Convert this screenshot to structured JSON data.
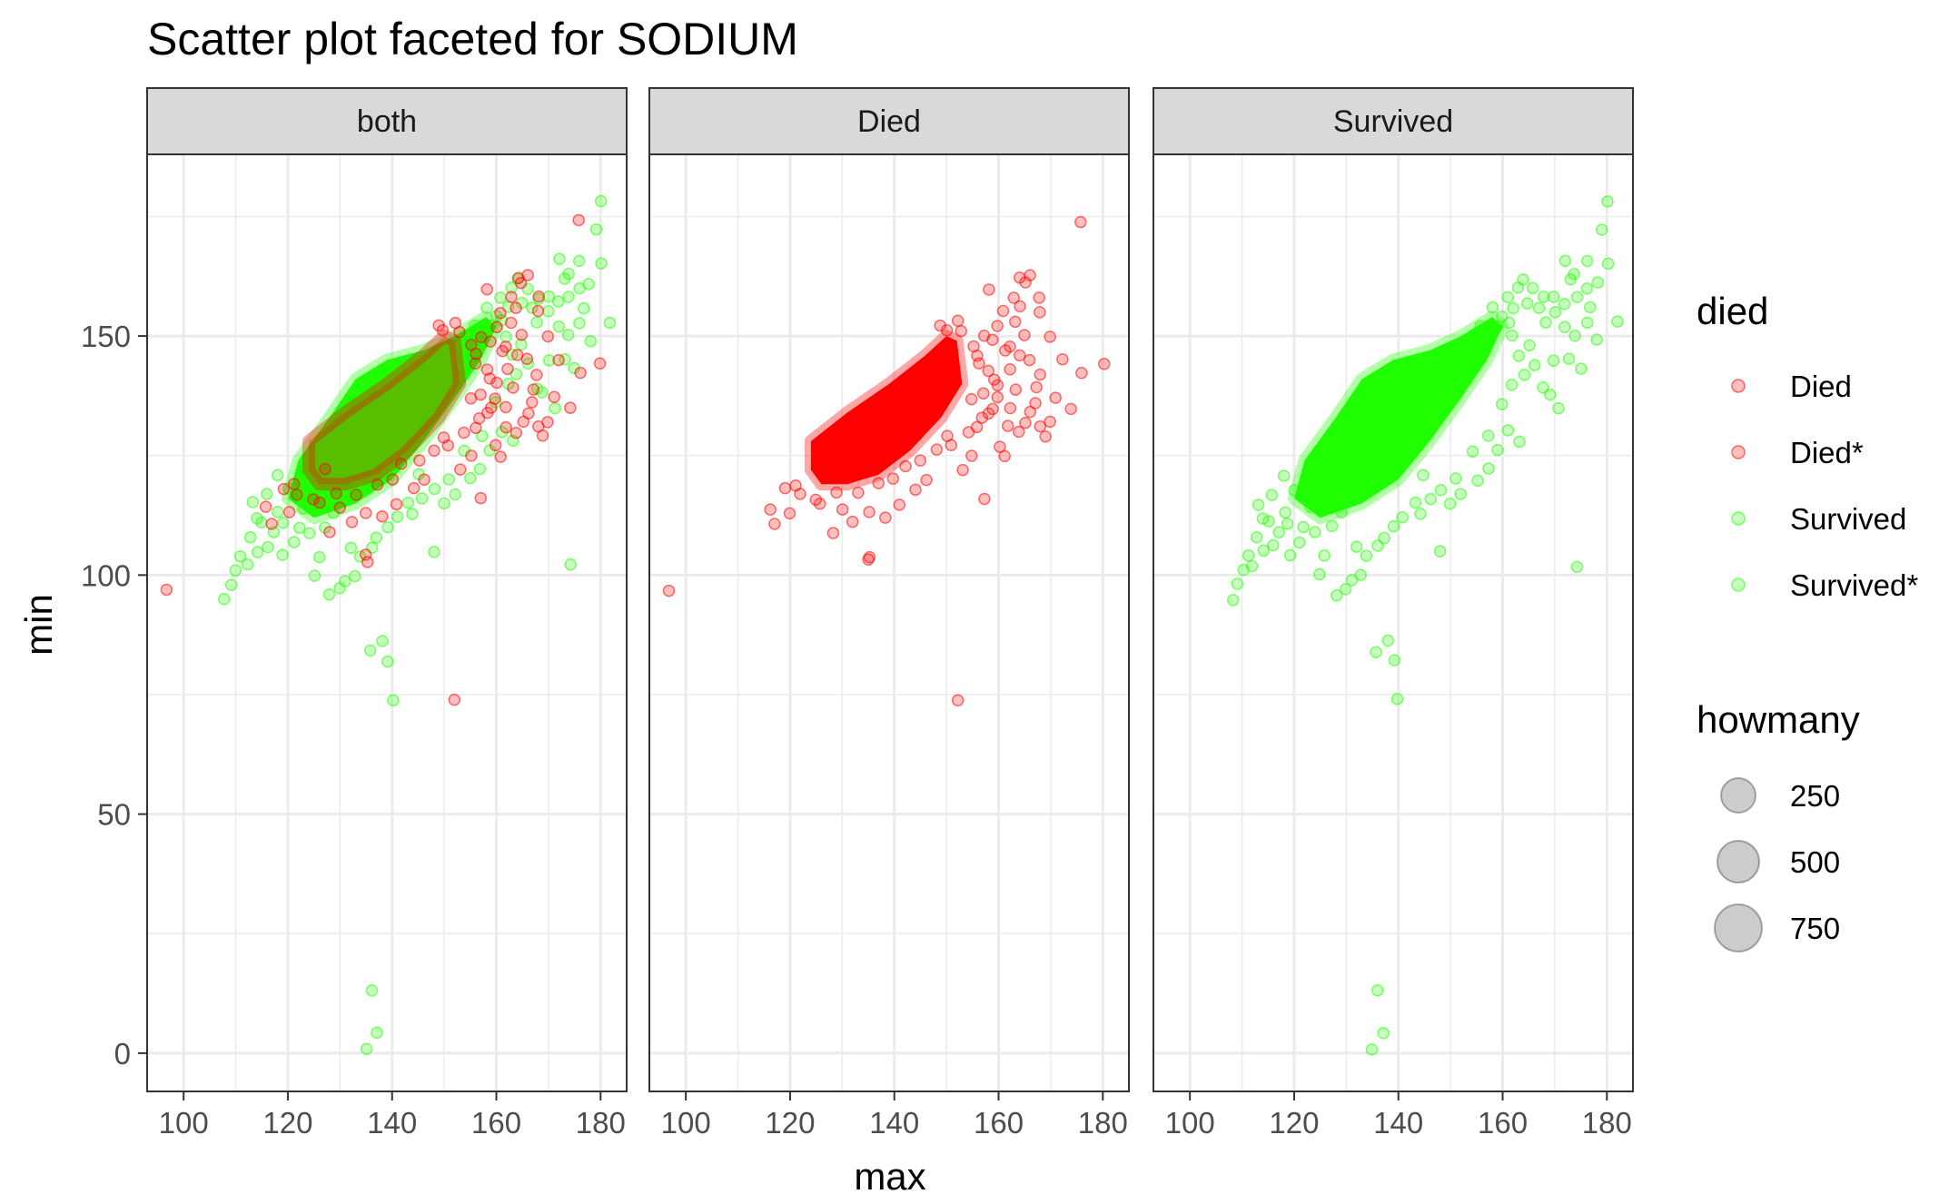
{
  "chart_data": {
    "type": "scatter",
    "title": "Scatter plot faceted for SODIUM",
    "xlabel": "max",
    "ylabel": "min",
    "xlim": [
      93,
      185
    ],
    "ylim": [
      -8,
      188
    ],
    "x_ticks": [
      "100",
      "120",
      "140",
      "160",
      "180"
    ],
    "y_ticks": [
      "0",
      "50",
      "100",
      "150"
    ],
    "grid": true,
    "legend_position": "right",
    "facets": [
      "both",
      "Died",
      "Survived"
    ],
    "color_legend": {
      "title": "died",
      "entries": [
        {
          "label": "Died",
          "color": "#ff0000"
        },
        {
          "label": "Died*",
          "color": "#ff0000"
        },
        {
          "label": "Survived",
          "color": "#1fff00"
        },
        {
          "label": "Survived*",
          "color": "#1fff00"
        }
      ]
    },
    "size_legend": {
      "title": "howmany",
      "entries": [
        "250",
        "500",
        "750"
      ]
    },
    "series": [
      {
        "name": "Died",
        "color": "#ff0000",
        "dense_region": [
          [
            124,
            122
          ],
          [
            124,
            128
          ],
          [
            131,
            134
          ],
          [
            139,
            140
          ],
          [
            146,
            146
          ],
          [
            150,
            150
          ],
          [
            152,
            149
          ],
          [
            153,
            140
          ],
          [
            149,
            133
          ],
          [
            143,
            126
          ],
          [
            137,
            121
          ],
          [
            131,
            119
          ],
          [
            126,
            119
          ]
        ],
        "points": [
          [
            97,
            97
          ],
          [
            135,
            104
          ],
          [
            135,
            103
          ],
          [
            152,
            74
          ],
          [
            176,
            174
          ],
          [
            180,
            144
          ],
          [
            176,
            142
          ],
          [
            174,
            135
          ],
          [
            171,
            137
          ],
          [
            169,
            129
          ],
          [
            168,
            131
          ],
          [
            166,
            163
          ],
          [
            164,
            162
          ],
          [
            165,
            161
          ],
          [
            163,
            158
          ],
          [
            168,
            158
          ],
          [
            168,
            155
          ],
          [
            163,
            153
          ],
          [
            165,
            150
          ],
          [
            161,
            147
          ],
          [
            166,
            145
          ],
          [
            162,
            143
          ],
          [
            167,
            139
          ],
          [
            163,
            139
          ],
          [
            166,
            134
          ],
          [
            164,
            130
          ],
          [
            162,
            131
          ],
          [
            159,
            135
          ],
          [
            160,
            137
          ],
          [
            160,
            140
          ],
          [
            161,
            125
          ],
          [
            160,
            127
          ],
          [
            157,
            116
          ],
          [
            156,
            131
          ],
          [
            155,
            125
          ],
          [
            153,
            122
          ],
          [
            150,
            129
          ],
          [
            148,
            126
          ],
          [
            146,
            120
          ],
          [
            142,
            123
          ],
          [
            144,
            118
          ],
          [
            141,
            115
          ],
          [
            138,
            112
          ],
          [
            135,
            113
          ],
          [
            132,
            111
          ],
          [
            130,
            114
          ],
          [
            128,
            109
          ],
          [
            126,
            115
          ],
          [
            125,
            116
          ],
          [
            122,
            117
          ],
          [
            119,
            118
          ],
          [
            117,
            111
          ],
          [
            116,
            114
          ],
          [
            121,
            119
          ],
          [
            120,
            113
          ],
          [
            127,
            122
          ],
          [
            129,
            117
          ],
          [
            133,
            117
          ],
          [
            137,
            119
          ],
          [
            140,
            120
          ],
          [
            145,
            124
          ],
          [
            151,
            127
          ],
          [
            154,
            130
          ],
          [
            158,
            134
          ],
          [
            157,
            138
          ],
          [
            158,
            143
          ],
          [
            156,
            146
          ],
          [
            155,
            148
          ],
          [
            153,
            151
          ],
          [
            152,
            153
          ],
          [
            150,
            151
          ],
          [
            149,
            152
          ],
          [
            160,
            152
          ],
          [
            162,
            148
          ],
          [
            164,
            146
          ],
          [
            157,
            150
          ],
          [
            159,
            149
          ],
          [
            161,
            155
          ],
          [
            164,
            156
          ],
          [
            158,
            160
          ],
          [
            156,
            144
          ],
          [
            159,
            141
          ],
          [
            155,
            137
          ],
          [
            157,
            133
          ],
          [
            162,
            135
          ],
          [
            165,
            132
          ],
          [
            170,
            132
          ],
          [
            167,
            136
          ],
          [
            168,
            142
          ],
          [
            170,
            150
          ],
          [
            172,
            145
          ]
        ]
      },
      {
        "name": "Survived",
        "color": "#1fff00",
        "dense_region": [
          [
            120,
            116
          ],
          [
            122,
            124
          ],
          [
            128,
            133
          ],
          [
            133,
            141
          ],
          [
            139,
            145
          ],
          [
            146,
            147
          ],
          [
            152,
            150
          ],
          [
            158,
            154
          ],
          [
            160,
            152
          ],
          [
            157,
            145
          ],
          [
            152,
            137
          ],
          [
            146,
            128
          ],
          [
            140,
            120
          ],
          [
            133,
            115
          ],
          [
            125,
            112
          ]
        ],
        "points": [
          [
            135,
            1
          ],
          [
            137,
            4
          ],
          [
            136,
            13
          ],
          [
            136,
            84
          ],
          [
            138,
            86
          ],
          [
            139,
            82
          ],
          [
            140,
            74
          ],
          [
            148,
            105
          ],
          [
            157,
            122
          ],
          [
            174,
            102
          ],
          [
            108,
            95
          ],
          [
            109,
            98
          ],
          [
            111,
            104
          ],
          [
            112,
            102
          ],
          [
            110,
            101
          ],
          [
            114,
            105
          ],
          [
            113,
            108
          ],
          [
            115,
            111
          ],
          [
            117,
            109
          ],
          [
            116,
            106
          ],
          [
            119,
            104
          ],
          [
            121,
            107
          ],
          [
            118,
            113
          ],
          [
            124,
            109
          ],
          [
            126,
            104
          ],
          [
            127,
            110
          ],
          [
            125,
            100
          ],
          [
            128,
            96
          ],
          [
            130,
            97
          ],
          [
            131,
            99
          ],
          [
            133,
            100
          ],
          [
            132,
            106
          ],
          [
            134,
            104
          ],
          [
            137,
            108
          ],
          [
            139,
            110
          ],
          [
            141,
            112
          ],
          [
            143,
            115
          ],
          [
            146,
            116
          ],
          [
            150,
            115
          ],
          [
            152,
            117
          ],
          [
            155,
            120
          ],
          [
            154,
            126
          ],
          [
            157,
            129
          ],
          [
            159,
            126
          ],
          [
            161,
            130
          ],
          [
            163,
            128
          ],
          [
            160,
            136
          ],
          [
            162,
            140
          ],
          [
            164,
            142
          ],
          [
            166,
            144
          ],
          [
            163,
            146
          ],
          [
            165,
            148
          ],
          [
            168,
            153
          ],
          [
            170,
            155
          ],
          [
            172,
            157
          ],
          [
            174,
            158
          ],
          [
            176,
            160
          ],
          [
            178,
            161
          ],
          [
            180,
            165
          ],
          [
            179,
            172
          ],
          [
            180,
            178
          ],
          [
            176,
            166
          ],
          [
            174,
            163
          ],
          [
            172,
            166
          ],
          [
            173,
            162
          ],
          [
            170,
            158
          ],
          [
            168,
            158
          ],
          [
            166,
            160
          ],
          [
            164,
            162
          ],
          [
            163,
            160
          ],
          [
            165,
            157
          ],
          [
            167,
            156
          ],
          [
            161,
            158
          ],
          [
            162,
            156
          ],
          [
            160,
            154
          ],
          [
            158,
            156
          ],
          [
            172,
            152
          ],
          [
            174,
            150
          ],
          [
            176,
            153
          ],
          [
            178,
            149
          ],
          [
            182,
            153
          ],
          [
            177,
            156
          ],
          [
            173,
            145
          ],
          [
            170,
            145
          ],
          [
            168,
            139
          ],
          [
            171,
            135
          ],
          [
            169,
            138
          ],
          [
            175,
            143
          ],
          [
            162,
            150
          ],
          [
            161,
            153
          ],
          [
            159,
            152
          ],
          [
            156,
            152
          ],
          [
            151,
            120
          ],
          [
            148,
            118
          ],
          [
            145,
            121
          ],
          [
            144,
            113
          ],
          [
            136,
            106
          ],
          [
            129,
            113
          ],
          [
            123,
            114
          ],
          [
            120,
            118
          ],
          [
            118,
            121
          ],
          [
            116,
            117
          ],
          [
            114,
            112
          ],
          [
            113,
            115
          ],
          [
            119,
            111
          ],
          [
            122,
            110
          ]
        ]
      }
    ]
  }
}
